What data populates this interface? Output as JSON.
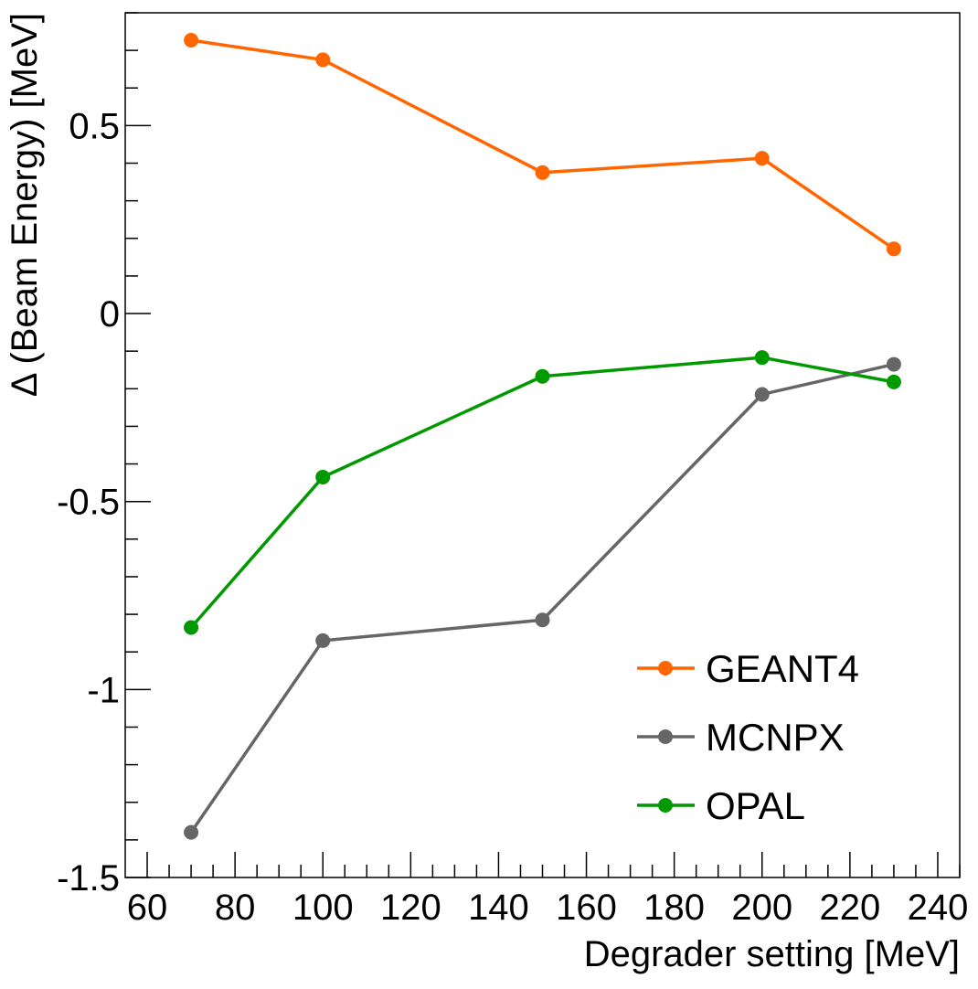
{
  "chart_data": {
    "type": "line",
    "title": "",
    "xlabel": "Degrader setting [MeV]",
    "ylabel": "Δ (Beam Energy) [MeV]",
    "xlim": [
      55,
      245
    ],
    "ylim": [
      -1.5,
      0.8
    ],
    "x_ticks": [
      60,
      80,
      100,
      120,
      140,
      160,
      180,
      200,
      220,
      240
    ],
    "x_tick_labels": [
      "60",
      "80",
      "100",
      "120",
      "140",
      "160",
      "180",
      "200",
      "220",
      "240"
    ],
    "y_ticks": [
      -1.5,
      -1,
      -0.5,
      0,
      0.5
    ],
    "y_tick_labels": [
      "-1.5",
      "-1",
      "-0.5",
      "0",
      "0.5"
    ],
    "x": [
      70,
      100,
      150,
      200,
      230
    ],
    "series": [
      {
        "name": "GEANT4",
        "color": "#ff6600",
        "values": [
          0.727,
          0.675,
          0.375,
          0.413,
          0.172
        ]
      },
      {
        "name": "MCNPX",
        "color": "#666666",
        "values": [
          -1.38,
          -0.87,
          -0.815,
          -0.215,
          -0.135
        ]
      },
      {
        "name": "OPAL",
        "color": "#009900",
        "values": [
          -0.835,
          -0.435,
          -0.167,
          -0.117,
          -0.182
        ]
      }
    ],
    "grid": false,
    "legend_position": "bottom-right"
  }
}
